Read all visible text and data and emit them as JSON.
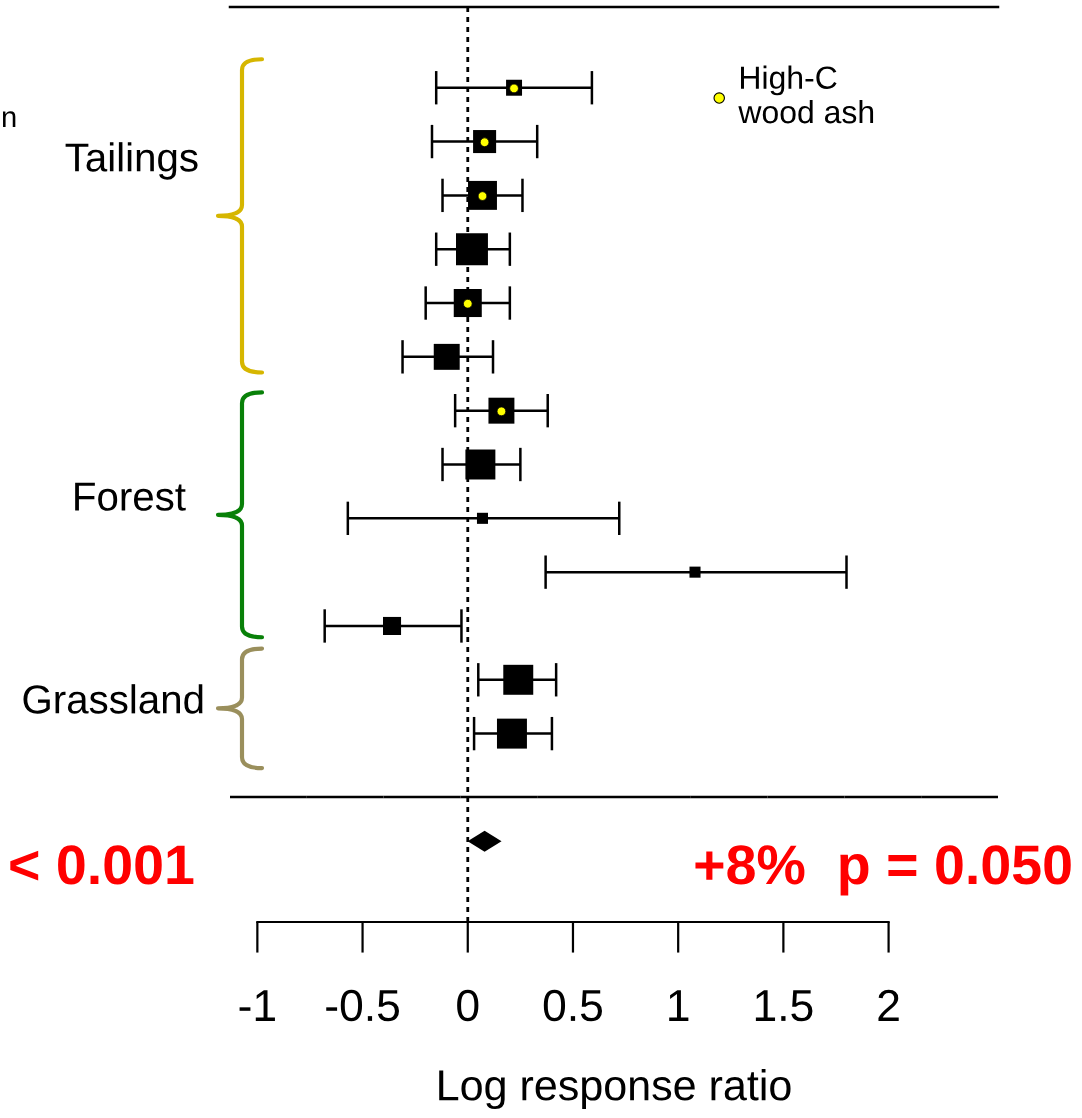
{
  "chart_data": {
    "type": "scatter",
    "orientation": "horizontal",
    "categories": [
      null,
      null,
      null,
      null,
      null,
      null,
      null,
      null,
      null,
      null,
      null,
      null,
      null,
      null,
      null,
      null,
      null
    ],
    "xlim": [
      -1.13,
      2.52
    ],
    "xticks": [
      -1,
      -0.5,
      0,
      0.5,
      1,
      1.5,
      2
    ],
    "xlabel": "Log response ratio",
    "tick_labels": "x",
    "legend": "top right",
    "series": [
      {
        "type": "bubble",
        "marker": "square",
        "color": "#000000",
        "values": [
          null,
          0.22,
          0.08,
          0.07,
          0.02,
          0,
          -0.1,
          0.16,
          0.06,
          0.07,
          1.08,
          -0.36,
          0.24,
          0.21,
          null,
          null,
          null
        ],
        "sizes": [
          null,
          0.25,
          0.52,
          0.82,
          1,
          0.77,
          0.66,
          0.66,
          0.88,
          0.12,
          0.12,
          0.32,
          0.88,
          0.88,
          null,
          null,
          null
        ],
        "errors": [
          null,
          [
            -0.15,
            0.59
          ],
          [
            -0.17,
            0.33
          ],
          [
            -0.12,
            0.26
          ],
          [
            -0.15,
            0.2
          ],
          [
            -0.2,
            0.2
          ],
          [
            -0.31,
            0.12
          ],
          [
            -0.06,
            0.38
          ],
          [
            -0.12,
            0.25
          ],
          [
            -0.57,
            0.72
          ],
          [
            0.37,
            1.8
          ],
          [
            -0.68,
            -0.03
          ],
          [
            0.05,
            0.42
          ],
          [
            0.03,
            0.4
          ],
          null,
          null,
          null
        ]
      },
      {
        "marker": "circle",
        "name": "High-C\nwood ash",
        "color": "#ffff00",
        "values": [
          null,
          0.22,
          0.08,
          0.07,
          null,
          0,
          null,
          0.16,
          null,
          null,
          null,
          null,
          null,
          null,
          null,
          null,
          null
        ]
      },
      {
        "marker": "diamond",
        "color": "#000000",
        "values": [
          null,
          null,
          null,
          null,
          null,
          null,
          null,
          null,
          null,
          null,
          null,
          null,
          null,
          null,
          null,
          0.08,
          null
        ]
      }
    ],
    "ref_lines": [
      {
        "axis": "x",
        "value": 0,
        "line_style": "dotted",
        "color": "#000000"
      }
    ],
    "annotations": [
      "n",
      "Tailings",
      "Forest",
      "Grassland",
      "< 0.001",
      "+8%  p = 0.050"
    ]
  }
}
